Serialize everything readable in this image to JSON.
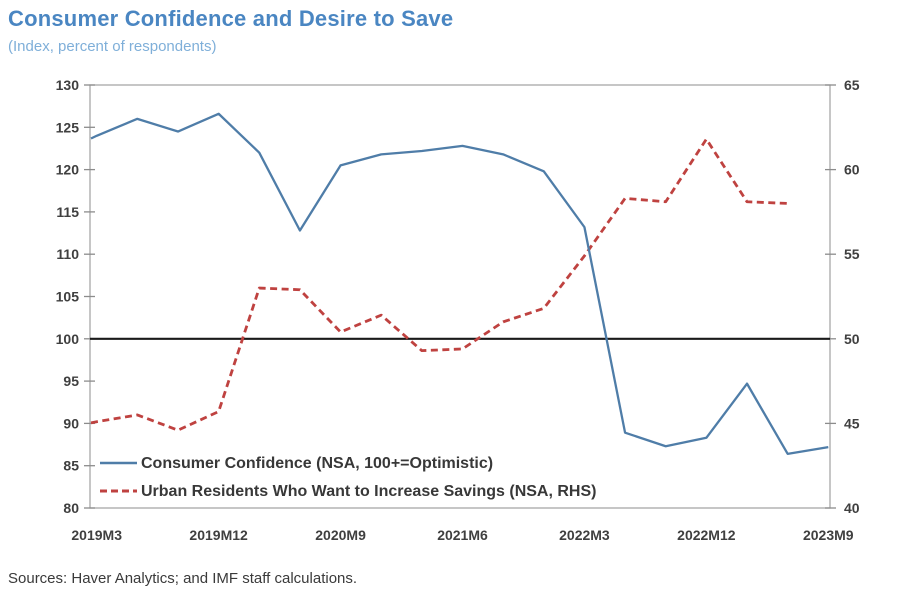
{
  "header": {
    "title": "Consumer Confidence and Desire to Save",
    "subtitle": "(Index, percent of respondents)"
  },
  "footer": {
    "sources": "Sources: Haver Analytics; and IMF staff calculations."
  },
  "colors": {
    "title_blue": "#4a86c2",
    "subtitle_blue": "#7fafd9",
    "confidence_line": "#4f7da8",
    "savings_line": "#bf4240",
    "reference_line": "#1a1a1a",
    "axis_border": "#a8a8a8",
    "tick_text": "#3f3f3f"
  },
  "chart_data": {
    "type": "line",
    "title": "Consumer Confidence and Desire to Save",
    "subtitle": "(Index, percent of respondents)",
    "grid": "off",
    "legend_position": "inside-bottom-left",
    "reference_line_left": 100,
    "x_axis": {
      "unit": "month",
      "tick_labels": [
        "2019M3",
        "2019M12",
        "2020M9",
        "2021M6",
        "2022M3",
        "2022M12",
        "2023M9"
      ],
      "tick_months": [
        0,
        9,
        18,
        27,
        36,
        45,
        54
      ]
    },
    "y_left": {
      "min": 80,
      "max": 130,
      "ticks": [
        130,
        125,
        120,
        115,
        110,
        105,
        100,
        95,
        90,
        85,
        80
      ]
    },
    "y_right": {
      "min": 40,
      "max": 65,
      "ticks": [
        65,
        60,
        55,
        50,
        45,
        40
      ]
    },
    "series": [
      {
        "name": "Consumer Confidence (NSA, 100+=Optimistic)",
        "axis": "left",
        "style": "solid",
        "color": "#4f7da8",
        "x_labels": [
          "2019M3",
          "2019M6",
          "2019M9",
          "2019M12",
          "2020M3",
          "2020M6",
          "2020M9",
          "2020M12",
          "2021M3",
          "2021M6",
          "2021M9",
          "2021M12",
          "2022M3",
          "2022M6",
          "2022M9",
          "2022M12",
          "2023M3",
          "2023M6",
          "2023M9"
        ],
        "month_index": [
          0,
          3,
          6,
          9,
          12,
          15,
          18,
          21,
          24,
          27,
          30,
          33,
          36,
          39,
          42,
          45,
          48,
          51,
          54
        ],
        "values": [
          124.0,
          126.0,
          124.5,
          126.6,
          122.0,
          112.8,
          120.5,
          121.8,
          122.2,
          122.8,
          121.8,
          119.8,
          113.2,
          88.9,
          87.3,
          88.3,
          94.7,
          86.4,
          87.2
        ]
      },
      {
        "name": "Urban Residents Who Want to Increase Savings (NSA, RHS)",
        "axis": "right",
        "style": "dashed",
        "color": "#bf4240",
        "x_labels": [
          "2019M3",
          "2019M6",
          "2019M9",
          "2019M12",
          "2020M3",
          "2020M6",
          "2020M9",
          "2020M12",
          "2021M3",
          "2021M6",
          "2021M9",
          "2021M12",
          "2022M3",
          "2022M6",
          "2022M9",
          "2022M12",
          "2023M3",
          "2023M6"
        ],
        "month_index": [
          0,
          3,
          6,
          9,
          12,
          15,
          18,
          21,
          24,
          27,
          30,
          33,
          36,
          39,
          42,
          45,
          48,
          51
        ],
        "values": [
          45.1,
          45.5,
          44.6,
          45.7,
          53.0,
          52.9,
          50.4,
          51.4,
          49.3,
          49.4,
          51.0,
          51.8,
          54.9,
          58.3,
          58.1,
          61.8,
          58.1,
          58.0
        ]
      }
    ]
  }
}
